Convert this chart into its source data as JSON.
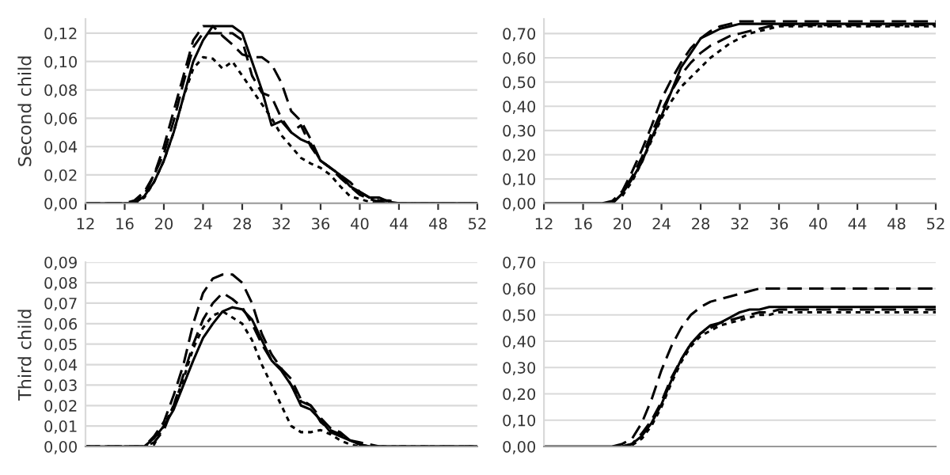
{
  "chart_data": [
    {
      "type": "line",
      "ylabel": "Second child",
      "grid": "y",
      "xlim": [
        12,
        52
      ],
      "xticks": [
        12,
        16,
        20,
        24,
        28,
        32,
        36,
        40,
        44,
        48,
        52
      ],
      "ylim": [
        0,
        0.13
      ],
      "yticks": [
        {
          "value": 0,
          "label": "0,00"
        },
        {
          "value": 0.02,
          "label": "0,02"
        },
        {
          "value": 0.04,
          "label": "0,04"
        },
        {
          "value": 0.06,
          "label": "0,06"
        },
        {
          "value": 0.08,
          "label": "0,08"
        },
        {
          "value": 0.1,
          "label": "0,10"
        },
        {
          "value": 0.12,
          "label": "0,12"
        }
      ],
      "x": [
        12,
        13,
        14,
        15,
        16,
        17,
        18,
        19,
        20,
        21,
        22,
        23,
        24,
        25,
        26,
        27,
        28,
        29,
        30,
        31,
        32,
        33,
        34,
        35,
        36,
        37,
        38,
        39,
        40,
        41,
        42,
        43,
        44,
        45,
        46,
        47,
        48,
        49,
        50,
        51,
        52
      ],
      "series": [
        {
          "color": "#000000",
          "line_style": "solid",
          "values": [
            0,
            0,
            0,
            0,
            0,
            0,
            0.005,
            0.015,
            0.03,
            0.05,
            0.075,
            0.1,
            0.115,
            0.125,
            0.125,
            0.125,
            0.12,
            0.1,
            0.08,
            0.055,
            0.058,
            0.05,
            0.045,
            0.042,
            0.03,
            0.025,
            0.02,
            0.012,
            0.008,
            0.004,
            0.004,
            0.001,
            0,
            0,
            0,
            0,
            0,
            0,
            0,
            0,
            0
          ]
        },
        {
          "color": "#000000",
          "line_style": "dashed",
          "values": [
            0,
            0,
            0,
            0,
            0,
            0.002,
            0.008,
            0.02,
            0.04,
            0.065,
            0.09,
            0.115,
            0.125,
            0.125,
            0.118,
            0.112,
            0.105,
            0.103,
            0.103,
            0.098,
            0.085,
            0.065,
            0.058,
            0.045,
            0.03,
            0.025,
            0.02,
            0.015,
            0.008,
            0.004,
            0.002,
            0.002,
            0,
            0,
            0,
            0,
            0,
            0,
            0,
            0,
            0
          ]
        },
        {
          "color": "#000000",
          "line_style": "dashed",
          "values": [
            0,
            0,
            0,
            0,
            0,
            0,
            0.006,
            0.02,
            0.035,
            0.058,
            0.085,
            0.11,
            0.12,
            0.12,
            0.12,
            0.12,
            0.115,
            0.09,
            0.078,
            0.075,
            0.06,
            0.05,
            0.055,
            0.04,
            0.03,
            0.025,
            0.018,
            0.012,
            0.006,
            0.003,
            0.001,
            0,
            0,
            0,
            0,
            0,
            0,
            0,
            0,
            0,
            0
          ]
        },
        {
          "color": "#000000",
          "line_style": "dotted",
          "values": [
            0,
            0,
            0,
            0,
            0,
            0,
            0.004,
            0.015,
            0.03,
            0.05,
            0.075,
            0.095,
            0.103,
            0.102,
            0.095,
            0.1,
            0.09,
            0.08,
            0.07,
            0.06,
            0.048,
            0.04,
            0.032,
            0.028,
            0.025,
            0.02,
            0.012,
            0.005,
            0.003,
            0.001,
            0,
            0,
            0,
            0,
            0,
            0,
            0,
            0,
            0,
            0,
            0
          ]
        }
      ]
    },
    {
      "type": "line",
      "grid": "y",
      "xlim": [
        12,
        52
      ],
      "xticks": [
        12,
        16,
        20,
        24,
        28,
        32,
        36,
        40,
        44,
        48,
        52
      ],
      "ylim": [
        0,
        0.76
      ],
      "yticks": [
        {
          "value": 0,
          "label": "0,00"
        },
        {
          "value": 0.1,
          "label": "0,10"
        },
        {
          "value": 0.2,
          "label": "0,20"
        },
        {
          "value": 0.3,
          "label": "0,30"
        },
        {
          "value": 0.4,
          "label": "0,40"
        },
        {
          "value": 0.5,
          "label": "0,50"
        },
        {
          "value": 0.6,
          "label": "0,60"
        },
        {
          "value": 0.7,
          "label": "0,70"
        }
      ],
      "x": [
        12,
        13,
        14,
        15,
        16,
        17,
        18,
        19,
        20,
        21,
        22,
        23,
        24,
        25,
        26,
        27,
        28,
        29,
        30,
        31,
        32,
        33,
        34,
        35,
        36,
        37,
        38,
        39,
        40,
        41,
        42,
        43,
        44,
        45,
        46,
        47,
        48,
        49,
        50,
        51,
        52
      ],
      "series": [
        {
          "color": "#000000",
          "line_style": "solid",
          "values": [
            0,
            0,
            0,
            0,
            0,
            0,
            0,
            0,
            0.04,
            0.1,
            0.17,
            0.27,
            0.36,
            0.46,
            0.56,
            0.62,
            0.68,
            0.7,
            0.72,
            0.73,
            0.74,
            0.74,
            0.74,
            0.74,
            0.74,
            0.74,
            0.74,
            0.74,
            0.74,
            0.74,
            0.74,
            0.74,
            0.74,
            0.74,
            0.74,
            0.74,
            0.74,
            0.74,
            0.74,
            0.74,
            0.74
          ]
        },
        {
          "color": "#000000",
          "line_style": "dashed",
          "x": [
            18,
            19,
            20,
            21,
            22,
            23,
            24,
            25,
            26,
            27,
            28,
            29,
            30,
            31,
            32,
            33,
            34,
            35,
            36,
            37,
            38,
            39,
            40,
            41,
            42,
            43,
            44,
            45,
            46,
            47,
            48,
            49,
            50,
            51,
            52
          ],
          "values": [
            0,
            0.01,
            0.05,
            0.13,
            0.22,
            0.32,
            0.43,
            0.51,
            0.58,
            0.64,
            0.68,
            0.71,
            0.73,
            0.74,
            0.75,
            0.75,
            0.75,
            0.75,
            0.75,
            0.75,
            0.75,
            0.75,
            0.75,
            0.75,
            0.75,
            0.75,
            0.75,
            0.75,
            0.75,
            0.75,
            0.75,
            0.75,
            0.75,
            0.75,
            0.75
          ]
        },
        {
          "color": "#000000",
          "line_style": "dashed",
          "x": [
            19,
            20,
            21,
            22,
            23,
            24,
            25,
            26,
            27,
            28,
            29,
            30,
            31,
            32,
            33,
            34,
            35,
            36,
            37,
            38,
            39,
            40,
            41,
            42,
            43,
            44,
            45,
            46,
            47,
            48,
            49,
            50,
            51,
            52
          ],
          "values": [
            0,
            0.04,
            0.11,
            0.19,
            0.29,
            0.38,
            0.46,
            0.53,
            0.58,
            0.62,
            0.65,
            0.67,
            0.69,
            0.7,
            0.71,
            0.72,
            0.73,
            0.735,
            0.735,
            0.735,
            0.735,
            0.735,
            0.735,
            0.735,
            0.735,
            0.735,
            0.735,
            0.735,
            0.735,
            0.735,
            0.735,
            0.735,
            0.735,
            0.735
          ]
        },
        {
          "color": "#000000",
          "line_style": "dotted",
          "x": [
            20,
            21,
            22,
            23,
            24,
            25,
            26,
            27,
            28,
            29,
            30,
            31,
            32,
            33,
            34,
            35,
            36,
            37,
            38,
            39,
            40,
            41,
            42,
            43,
            44,
            45,
            46,
            47,
            48,
            49,
            50,
            51,
            52
          ],
          "values": [
            0.03,
            0.09,
            0.17,
            0.26,
            0.35,
            0.42,
            0.48,
            0.52,
            0.56,
            0.6,
            0.63,
            0.66,
            0.68,
            0.7,
            0.71,
            0.72,
            0.73,
            0.73,
            0.73,
            0.73,
            0.73,
            0.73,
            0.73,
            0.73,
            0.73,
            0.73,
            0.73,
            0.73,
            0.73,
            0.73,
            0.73,
            0.73,
            0.73
          ]
        }
      ]
    },
    {
      "type": "line",
      "ylabel": "Third child",
      "grid": "y",
      "tick_labels": "y",
      "xlim": [
        12,
        52
      ],
      "ylim": [
        0,
        0.09
      ],
      "yticks": [
        {
          "value": 0,
          "label": "0,00"
        },
        {
          "value": 0.01,
          "label": "0,01"
        },
        {
          "value": 0.02,
          "label": "0,02"
        },
        {
          "value": 0.03,
          "label": "0,03"
        },
        {
          "value": 0.04,
          "label": "0,04"
        },
        {
          "value": 0.05,
          "label": "0,05"
        },
        {
          "value": 0.06,
          "label": "0,06"
        },
        {
          "value": 0.07,
          "label": "0,07"
        },
        {
          "value": 0.08,
          "label": "0,08"
        },
        {
          "value": 0.09,
          "label": "0,09"
        }
      ],
      "x": [
        12,
        13,
        14,
        15,
        16,
        17,
        18,
        19,
        20,
        21,
        22,
        23,
        24,
        25,
        26,
        27,
        28,
        29,
        30,
        31,
        32,
        33,
        34,
        35,
        36,
        37,
        38,
        39,
        40,
        41,
        42,
        43,
        44,
        45,
        46,
        47,
        48,
        49,
        50,
        51,
        52
      ],
      "series": [
        {
          "color": "#000000",
          "line_style": "solid",
          "values": [
            0,
            0,
            0,
            0,
            0,
            0,
            0,
            0.004,
            0.01,
            0.018,
            0.03,
            0.042,
            0.053,
            0.06,
            0.066,
            0.068,
            0.067,
            0.062,
            0.052,
            0.042,
            0.037,
            0.03,
            0.02,
            0.018,
            0.013,
            0.007,
            0.005,
            0.003,
            0.001,
            0,
            0,
            0,
            0,
            0,
            0,
            0,
            0,
            0,
            0,
            0,
            0
          ]
        },
        {
          "color": "#000000",
          "line_style": "dashed",
          "values": [
            0,
            0,
            0,
            0,
            0,
            0,
            0,
            0.005,
            0.012,
            0.025,
            0.04,
            0.06,
            0.075,
            0.082,
            0.084,
            0.084,
            0.08,
            0.07,
            0.055,
            0.045,
            0.038,
            0.033,
            0.023,
            0.02,
            0.014,
            0.009,
            0.007,
            0.003,
            0.001,
            0,
            0,
            0,
            0,
            0,
            0,
            0,
            0,
            0,
            0,
            0,
            0
          ]
        },
        {
          "color": "#000000",
          "line_style": "dashed",
          "values": [
            0,
            0,
            0,
            0,
            0,
            0,
            0,
            0.002,
            0.008,
            0.02,
            0.035,
            0.05,
            0.062,
            0.07,
            0.075,
            0.072,
            0.068,
            0.06,
            0.05,
            0.042,
            0.038,
            0.03,
            0.022,
            0.02,
            0.012,
            0.008,
            0.006,
            0.003,
            0.002,
            0.001,
            0,
            0,
            0,
            0,
            0,
            0,
            0,
            0,
            0,
            0,
            0
          ]
        },
        {
          "color": "#000000",
          "line_style": "dotted",
          "values": [
            0,
            0,
            0,
            0,
            0,
            0,
            0,
            0.001,
            0.01,
            0.02,
            0.033,
            0.048,
            0.058,
            0.064,
            0.066,
            0.063,
            0.06,
            0.052,
            0.04,
            0.03,
            0.02,
            0.01,
            0.007,
            0.007,
            0.008,
            0.006,
            0.003,
            0.001,
            0,
            0,
            0,
            0,
            0,
            0,
            0,
            0,
            0,
            0,
            0,
            0,
            0
          ]
        }
      ]
    },
    {
      "type": "line",
      "grid": "y",
      "tick_labels": "y",
      "xlim": [
        12,
        52
      ],
      "ylim": [
        0,
        0.7
      ],
      "yticks": [
        {
          "value": 0,
          "label": "0,00"
        },
        {
          "value": 0.1,
          "label": "0,10"
        },
        {
          "value": 0.2,
          "label": "0,20"
        },
        {
          "value": 0.3,
          "label": "0,30"
        },
        {
          "value": 0.4,
          "label": "0,40"
        },
        {
          "value": 0.5,
          "label": "0,50"
        },
        {
          "value": 0.6,
          "label": "0,60"
        },
        {
          "value": 0.7,
          "label": "0,70"
        }
      ],
      "x": [
        12,
        13,
        14,
        15,
        16,
        17,
        18,
        19,
        20,
        21,
        22,
        23,
        24,
        25,
        26,
        27,
        28,
        29,
        30,
        31,
        32,
        33,
        34,
        35,
        36,
        37,
        38,
        39,
        40,
        41,
        42,
        43,
        44,
        45,
        46,
        47,
        48,
        49,
        50,
        51,
        52
      ],
      "series": [
        {
          "color": "#000000",
          "line_style": "solid",
          "values": [
            0,
            0,
            0,
            0,
            0,
            0,
            0,
            0,
            0,
            0.01,
            0.04,
            0.09,
            0.16,
            0.25,
            0.33,
            0.39,
            0.43,
            0.46,
            0.47,
            0.49,
            0.51,
            0.52,
            0.52,
            0.53,
            0.53,
            0.53,
            0.53,
            0.53,
            0.53,
            0.53,
            0.53,
            0.53,
            0.53,
            0.53,
            0.53,
            0.53,
            0.53,
            0.53,
            0.53,
            0.53,
            0.53
          ]
        },
        {
          "color": "#000000",
          "line_style": "dashed",
          "x": [
            19,
            20,
            21,
            22,
            23,
            24,
            25,
            26,
            27,
            28,
            29,
            30,
            31,
            32,
            33,
            34,
            35,
            36,
            37,
            38,
            39,
            40,
            41,
            42,
            43,
            44,
            45,
            46,
            47,
            48,
            49,
            50,
            51,
            52
          ],
          "values": [
            0,
            0.01,
            0.03,
            0.09,
            0.18,
            0.29,
            0.38,
            0.45,
            0.5,
            0.53,
            0.55,
            0.56,
            0.57,
            0.58,
            0.59,
            0.6,
            0.6,
            0.6,
            0.6,
            0.6,
            0.6,
            0.6,
            0.6,
            0.6,
            0.6,
            0.6,
            0.6,
            0.6,
            0.6,
            0.6,
            0.6,
            0.6,
            0.6,
            0.6
          ]
        },
        {
          "color": "#000000",
          "line_style": "dashed",
          "x": [
            20,
            21,
            22,
            23,
            24,
            25,
            26,
            27,
            28,
            29,
            30,
            31,
            32,
            33,
            34,
            35,
            36,
            37,
            38,
            39,
            40,
            41,
            42,
            43,
            44,
            45,
            46,
            47,
            48,
            49,
            50,
            51,
            52
          ],
          "values": [
            0,
            0.01,
            0.05,
            0.1,
            0.17,
            0.26,
            0.33,
            0.39,
            0.43,
            0.45,
            0.47,
            0.48,
            0.49,
            0.5,
            0.51,
            0.51,
            0.52,
            0.52,
            0.52,
            0.52,
            0.52,
            0.52,
            0.52,
            0.52,
            0.52,
            0.52,
            0.52,
            0.52,
            0.52,
            0.52,
            0.52,
            0.52,
            0.52
          ]
        },
        {
          "color": "#000000",
          "line_style": "dotted",
          "x": [
            21,
            22,
            23,
            24,
            25,
            26,
            27,
            28,
            29,
            30,
            31,
            32,
            33,
            34,
            35,
            36,
            37,
            38,
            39,
            40,
            41,
            42,
            43,
            44,
            45,
            46,
            47,
            48,
            49,
            50,
            51,
            52
          ],
          "values": [
            0.005,
            0.03,
            0.08,
            0.15,
            0.24,
            0.32,
            0.38,
            0.42,
            0.44,
            0.46,
            0.47,
            0.48,
            0.49,
            0.5,
            0.5,
            0.51,
            0.51,
            0.51,
            0.51,
            0.51,
            0.51,
            0.51,
            0.51,
            0.51,
            0.51,
            0.51,
            0.51,
            0.51,
            0.51,
            0.51,
            0.51,
            0.51
          ]
        }
      ]
    }
  ]
}
